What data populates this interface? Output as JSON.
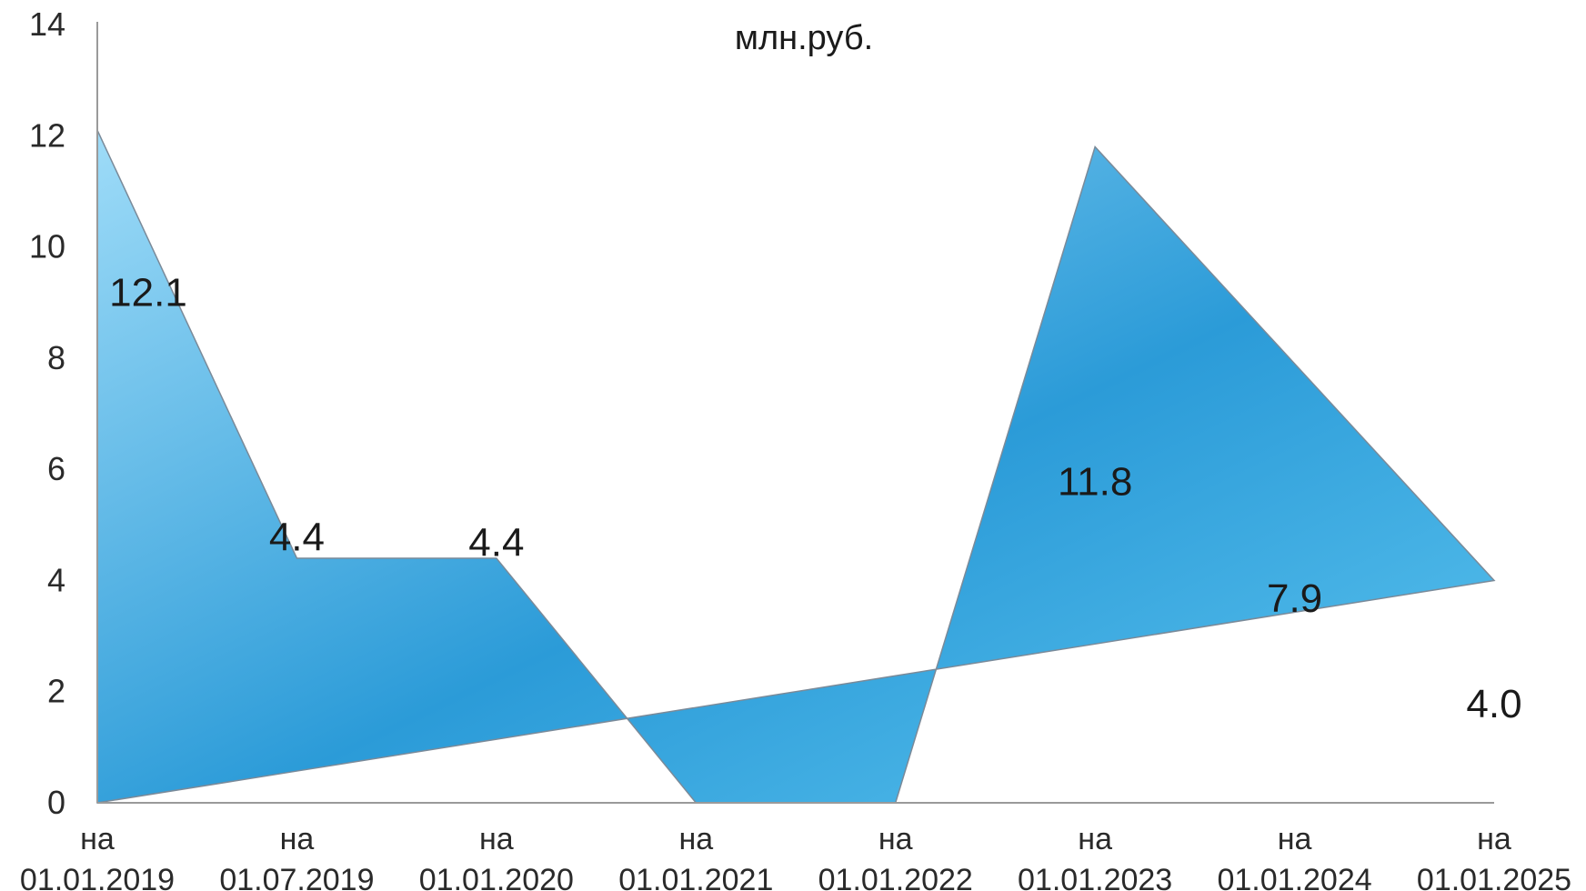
{
  "chart_data": {
    "type": "area",
    "unit": "млн.руб.",
    "categories": [
      [
        "на",
        "01.01.2019"
      ],
      [
        "на",
        "01.07.2019"
      ],
      [
        "на",
        "01.01.2020"
      ],
      [
        "на",
        "01.01.2021"
      ],
      [
        "на",
        "01.01.2022"
      ],
      [
        "на",
        "01.01.2023"
      ],
      [
        "на",
        "01.01.2024"
      ],
      [
        "на",
        "01.01.2025"
      ]
    ],
    "series": [
      {
        "values": [
          12.1,
          4.4,
          4.4,
          0,
          0,
          11.8,
          7.9,
          4.0
        ],
        "labels": [
          "12.1",
          "4.4",
          "4.4",
          "",
          "",
          "11.8",
          "7.9",
          "4.0"
        ]
      }
    ],
    "trendline": {
      "start": 0,
      "end": 4.0
    },
    "ylim": [
      0,
      14
    ],
    "yticks": [
      0,
      2,
      4,
      6,
      8,
      10,
      12,
      14
    ],
    "grid": false,
    "colors": {
      "fill_light": "#8fd6f7",
      "fill_dark": "#1e8fd0",
      "outline": "#7a8a99",
      "axis": "#9a9a9a"
    }
  }
}
